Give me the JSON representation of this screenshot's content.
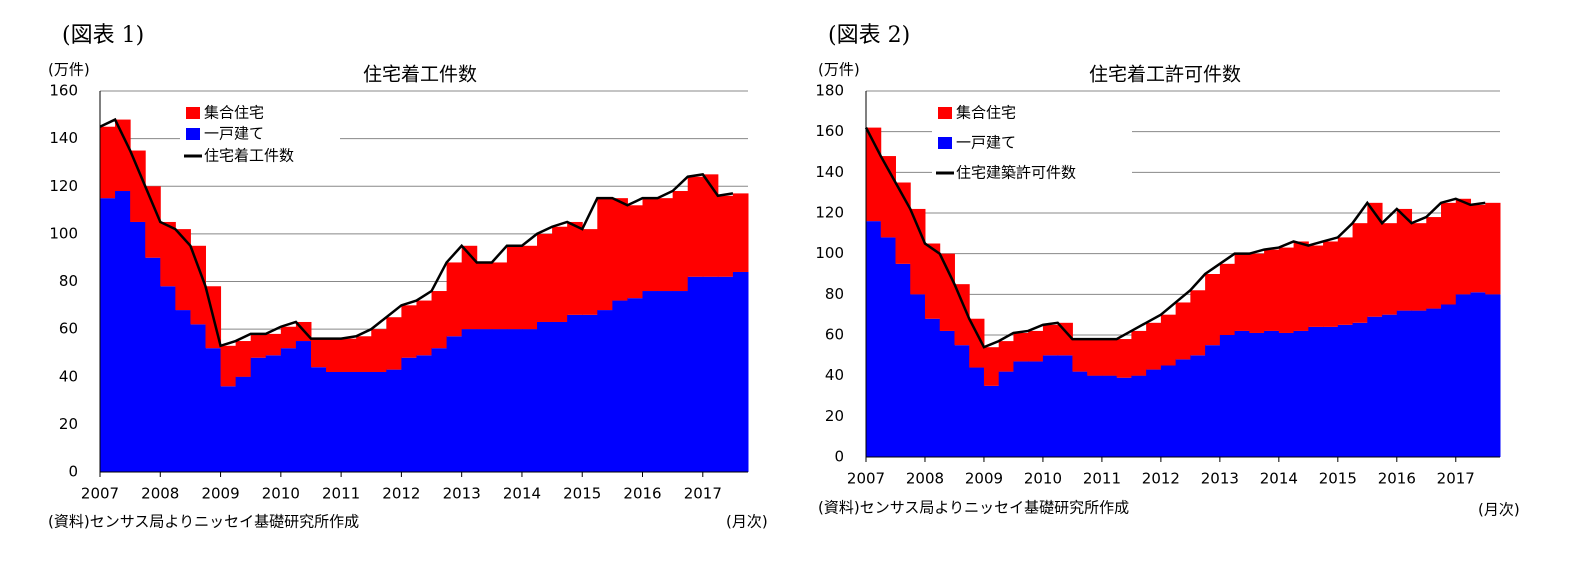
{
  "chart_data": [
    {
      "type": "stacked-bar-line",
      "label": "(図表 1)",
      "unit": "(万件)",
      "title": "住宅着工件数",
      "source": "(資料)センサス局よりニッセイ基礎研究所作成",
      "x_unit": "(月次)",
      "x": [
        2007,
        2007.25,
        2007.5,
        2007.75,
        2008,
        2008.25,
        2008.5,
        2008.75,
        2009,
        2009.25,
        2009.5,
        2009.75,
        2010,
        2010.25,
        2010.5,
        2010.75,
        2011,
        2011.25,
        2011.5,
        2011.75,
        2012,
        2012.25,
        2012.5,
        2012.75,
        2013,
        2013.25,
        2013.5,
        2013.75,
        2014,
        2014.25,
        2014.5,
        2014.75,
        2015,
        2015.25,
        2015.5,
        2015.75,
        2016,
        2016.25,
        2016.5,
        2016.75,
        2017,
        2017.25,
        2017.5
      ],
      "xlim": [
        2007,
        2017.75
      ],
      "xticks": [
        2007,
        2008,
        2009,
        2010,
        2011,
        2012,
        2013,
        2014,
        2015,
        2016,
        2017
      ],
      "ylim": [
        0,
        160
      ],
      "yticks": [
        0,
        20,
        40,
        60,
        80,
        100,
        120,
        140,
        160
      ],
      "grid": true,
      "series": [
        {
          "name": "集合住宅",
          "color": "#ff0000",
          "stack": true,
          "values": [
            30,
            30,
            30,
            30,
            27,
            34,
            33,
            26,
            17,
            15,
            10,
            9,
            9,
            8,
            12,
            14,
            14,
            15,
            18,
            22,
            22,
            23,
            24,
            31,
            35,
            28,
            28,
            35,
            35,
            37,
            40,
            39,
            36,
            47,
            43,
            39,
            39,
            39,
            42,
            42,
            43,
            34,
            33
          ]
        },
        {
          "name": "一戸建て",
          "color": "#0000ff",
          "stack": true,
          "values": [
            115,
            118,
            105,
            90,
            78,
            68,
            62,
            52,
            36,
            40,
            48,
            49,
            52,
            55,
            44,
            42,
            42,
            42,
            42,
            43,
            48,
            49,
            52,
            57,
            60,
            60,
            60,
            60,
            60,
            63,
            63,
            66,
            66,
            68,
            72,
            73,
            76,
            76,
            76,
            82,
            82,
            82,
            84
          ]
        },
        {
          "name": "住宅着工件数",
          "color": "#000000",
          "stack": false,
          "values": [
            145,
            148,
            135,
            120,
            105,
            102,
            95,
            78,
            53,
            55,
            58,
            58,
            61,
            63,
            56,
            56,
            56,
            57,
            60,
            65,
            70,
            72,
            76,
            88,
            95,
            88,
            88,
            95,
            95,
            100,
            103,
            105,
            102,
            115,
            115,
            112,
            115,
            115,
            118,
            124,
            125,
            116,
            117
          ]
        }
      ]
    },
    {
      "type": "stacked-bar-line",
      "label": "(図表 2)",
      "unit": "(万件)",
      "title": "住宅着工許可件数",
      "source": "(資料)センサス局よりニッセイ基礎研究所作成",
      "x_unit": "(月次)",
      "x": [
        2007,
        2007.25,
        2007.5,
        2007.75,
        2008,
        2008.25,
        2008.5,
        2008.75,
        2009,
        2009.25,
        2009.5,
        2009.75,
        2010,
        2010.25,
        2010.5,
        2010.75,
        2011,
        2011.25,
        2011.5,
        2011.75,
        2012,
        2012.25,
        2012.5,
        2012.75,
        2013,
        2013.25,
        2013.5,
        2013.75,
        2014,
        2014.25,
        2014.5,
        2014.75,
        2015,
        2015.25,
        2015.5,
        2015.75,
        2016,
        2016.25,
        2016.5,
        2016.75,
        2017,
        2017.25,
        2017.5
      ],
      "xlim": [
        2007,
        2017.75
      ],
      "xticks": [
        2007,
        2008,
        2009,
        2010,
        2011,
        2012,
        2013,
        2014,
        2015,
        2016,
        2017
      ],
      "ylim": [
        0,
        180
      ],
      "yticks": [
        0,
        20,
        40,
        60,
        80,
        100,
        120,
        140,
        160,
        180
      ],
      "grid": true,
      "series": [
        {
          "name": "集合住宅",
          "color": "#ff0000",
          "stack": true,
          "values": [
            46,
            40,
            40,
            42,
            37,
            38,
            30,
            24,
            19,
            15,
            14,
            15,
            15,
            16,
            16,
            18,
            18,
            19,
            22,
            23,
            25,
            28,
            32,
            35,
            35,
            38,
            39,
            40,
            42,
            44,
            40,
            42,
            43,
            49,
            56,
            45,
            50,
            43,
            45,
            50,
            47,
            43,
            45
          ]
        },
        {
          "name": "一戸建て",
          "color": "#0000ff",
          "stack": true,
          "values": [
            116,
            108,
            95,
            80,
            68,
            62,
            55,
            44,
            35,
            42,
            47,
            47,
            50,
            50,
            42,
            40,
            40,
            39,
            40,
            43,
            45,
            48,
            50,
            55,
            60,
            62,
            61,
            62,
            61,
            62,
            64,
            64,
            65,
            66,
            69,
            70,
            72,
            72,
            73,
            75,
            80,
            81,
            80
          ]
        },
        {
          "name": "住宅建築許可件数",
          "color": "#000000",
          "stack": false,
          "values": [
            162,
            148,
            135,
            122,
            105,
            100,
            85,
            68,
            54,
            57,
            61,
            62,
            65,
            66,
            58,
            58,
            58,
            58,
            62,
            66,
            70,
            76,
            82,
            90,
            95,
            100,
            100,
            102,
            103,
            106,
            104,
            106,
            108,
            115,
            125,
            115,
            122,
            115,
            118,
            125,
            127,
            124,
            125
          ]
        }
      ]
    }
  ]
}
